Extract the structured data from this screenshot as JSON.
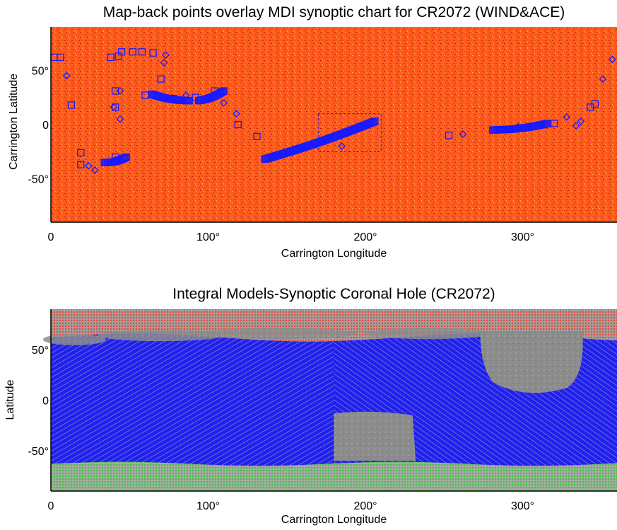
{
  "chart_data": [
    {
      "type": "scatter",
      "title": "Map-back points overlay MDI synoptic chart for CR2072 (WIND&ACE)",
      "xlabel": "Carrington Longitude",
      "ylabel": "Carrington Latitude",
      "xlim": [
        0,
        360
      ],
      "ylim": [
        -90,
        90
      ],
      "xticks": [
        "0",
        "100°",
        "200°",
        "300°"
      ],
      "yticks": [
        "50°",
        "0",
        "-50°"
      ],
      "background": "MDI synoptic magnetogram (orange/red)",
      "colors": {
        "background": "#ff5a1e",
        "markers": "#1a1aff"
      },
      "series": [
        {
          "marker": "square",
          "points": [
            [
              2,
              62
            ],
            [
              6,
              62
            ],
            [
              13,
              18
            ],
            [
              19,
              -26
            ],
            [
              19,
              -37
            ],
            [
              38,
              62
            ],
            [
              43,
              63
            ],
            [
              45,
              67
            ],
            [
              52,
              67
            ],
            [
              58,
              67
            ],
            [
              65,
              66
            ],
            [
              70,
              42
            ],
            [
              41,
              31
            ],
            [
              41,
              16
            ],
            [
              41,
              -30
            ],
            [
              60,
              27
            ],
            [
              78,
              24
            ],
            [
              92,
              25
            ],
            [
              104,
              31
            ],
            [
              119,
              0
            ],
            [
              131,
              -11
            ],
            [
              253,
              -10
            ],
            [
              320,
              1
            ],
            [
              343,
              16
            ],
            [
              346,
              19
            ]
          ]
        },
        {
          "marker": "diamond",
          "points": [
            [
              10,
              45
            ],
            [
              24,
              -38
            ],
            [
              28,
              -42
            ],
            [
              40,
              16
            ],
            [
              44,
              31
            ],
            [
              44,
              5
            ],
            [
              72,
              57
            ],
            [
              73,
              64
            ],
            [
              86,
              27
            ],
            [
              110,
              20
            ],
            [
              118,
              10
            ],
            [
              185,
              -20
            ],
            [
              297,
              -2
            ],
            [
              328,
              7
            ],
            [
              334,
              -1
            ],
            [
              337,
              3
            ],
            [
              351,
              42
            ],
            [
              357,
              60
            ],
            [
              262,
              -9
            ]
          ]
        },
        {
          "marker": "dense-squares",
          "label_free_note": "",
          "arcs": [
            {
              "x": [
                34,
                48
              ],
              "y": [
                -35,
                -30
              ]
            },
            {
              "x": [
                64,
                88
              ],
              "y": [
                28,
                22
              ]
            },
            {
              "x": [
                94,
                110
              ],
              "y": [
                22,
                31
              ]
            },
            {
              "x": [
                136,
                206
              ],
              "y": [
                -32,
                3
              ]
            },
            {
              "x": [
                281,
                316
              ],
              "y": [
                -5,
                1
              ]
            }
          ]
        }
      ],
      "annotation_box": {
        "x": [
          170,
          210
        ],
        "y": [
          -25,
          10
        ],
        "style": "dashed"
      }
    },
    {
      "type": "heatmap",
      "title": "Integral Models-Synoptic Coronal Hole (CR2072)",
      "xlabel": "Carrington Longitude",
      "ylabel": "Latitude",
      "xlim": [
        0,
        360
      ],
      "ylim": [
        -90,
        90
      ],
      "xticks": [
        "0",
        "100°",
        "200°",
        "300°"
      ],
      "yticks": [
        "50°",
        "0",
        "-50°"
      ],
      "colors": {
        "open_field_blue": "#2323ee",
        "north_pole_red": "#e04a3a",
        "south_pole_green": "#3ebf3e",
        "coronal_hole_gray": "#8c8c8c"
      },
      "regions": [
        {
          "name": "north polar band",
          "color": "red",
          "lat": [
            62,
            90
          ]
        },
        {
          "name": "south polar band",
          "color": "green",
          "lat": [
            -90,
            -63
          ]
        },
        {
          "name": "gray coronal hole A",
          "color": "gray",
          "lon": [
            180,
            230
          ],
          "lat": [
            -60,
            -15
          ]
        },
        {
          "name": "gray coronal hole B",
          "color": "gray",
          "lon": [
            273,
            328
          ],
          "lat": [
            4,
            62
          ]
        }
      ]
    }
  ]
}
